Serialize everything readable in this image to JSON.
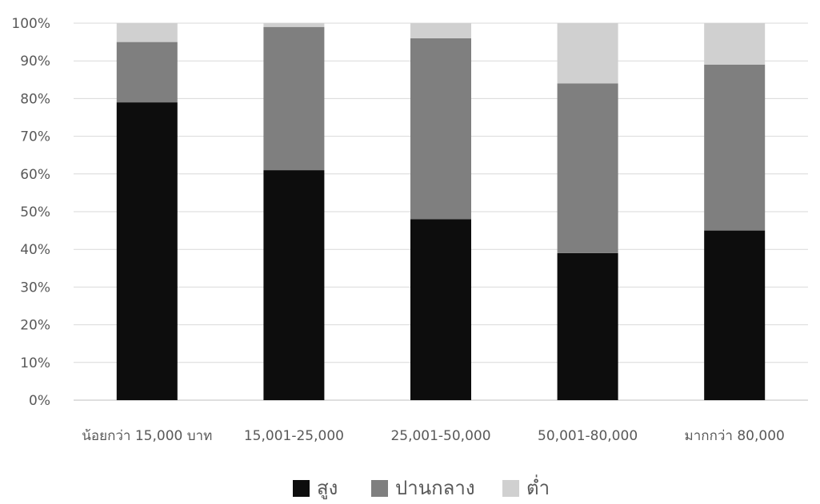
{
  "chart_data": {
    "type": "bar",
    "stacked": true,
    "percent": true,
    "categories": [
      "น้อยกว่า 15,000 บาท",
      "15,001-25,000",
      "25,001-50,000",
      "50,001-80,000",
      "มากกว่า 80,000"
    ],
    "series": [
      {
        "name": "สูง",
        "color": "#0d0d0d",
        "values": [
          79,
          61,
          48,
          39,
          45
        ]
      },
      {
        "name": "ปานกลาง",
        "color": "#7f7f7f",
        "values": [
          16,
          38,
          48,
          45,
          44
        ]
      },
      {
        "name": "ต่ำ",
        "color": "#d0d0d0",
        "values": [
          5,
          1,
          4,
          16,
          11
        ]
      }
    ],
    "y_ticks": [
      "0%",
      "10%",
      "20%",
      "30%",
      "40%",
      "50%",
      "60%",
      "70%",
      "80%",
      "90%",
      "100%"
    ],
    "ylim": [
      0,
      100
    ],
    "grid": true,
    "legend_position": "bottom"
  }
}
